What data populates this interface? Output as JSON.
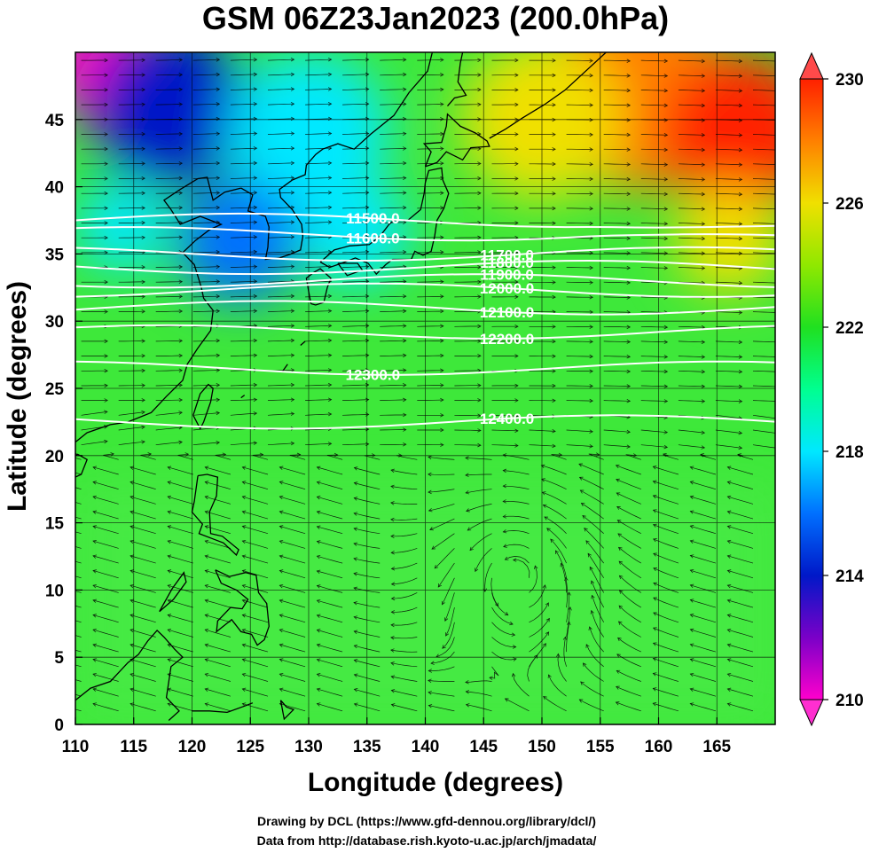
{
  "title": "GSM 06Z23Jan2023 (200.0hPa)",
  "xlabel": "Longitude (degrees)",
  "ylabel": "Latitude  (degrees)",
  "credit_line1": "Drawing by DCL (https://www.gfd-dennou.org/library/dcl/)",
  "credit_line2": "Data from http://database.rish.kyoto-u.ac.jp/arch/jmadata/",
  "chart_data": {
    "type": "heatmap",
    "title": "GSM 06Z23Jan2023 (200.0hPa)",
    "xlabel": "Longitude (degrees)",
    "ylabel": "Latitude  (degrees)",
    "xlim": [
      110,
      170
    ],
    "ylim": [
      0,
      50
    ],
    "x_ticks": [
      "110",
      "115",
      "120",
      "125",
      "130",
      "135",
      "140",
      "145",
      "150",
      "155",
      "160",
      "165"
    ],
    "y_ticks": [
      "0",
      "5",
      "10",
      "15",
      "20",
      "25",
      "30",
      "35",
      "40",
      "45"
    ],
    "colorbar": {
      "range": [
        210,
        230
      ],
      "ticks": [
        "210",
        "214",
        "218",
        "222",
        "226",
        "230"
      ],
      "colors": [
        "#ff00cc",
        "#7a00c8",
        "#0018c8",
        "#0070ff",
        "#00e8ff",
        "#00ff90",
        "#20e020",
        "#90e800",
        "#f0e000",
        "#ff8000",
        "#ff2000"
      ]
    },
    "contours": [
      {
        "label": "11500.0",
        "lat": 37.5
      },
      {
        "label": "11600.0",
        "lat": 36.5
      },
      {
        "label": "11700.0",
        "lat": 35.0
      },
      {
        "label": "11800.0",
        "lat": 34.0
      },
      {
        "label": "11900.0",
        "lat": 33.0
      },
      {
        "label": "12000.0",
        "lat": 32.3
      },
      {
        "label": "12100.0",
        "lat": 31.0
      },
      {
        "label": "12200.0",
        "lat": 29.2
      },
      {
        "label": "12300.0",
        "lat": 26.5
      },
      {
        "label": "12400.0",
        "lat": 22.5
      }
    ],
    "fill_field_blobs": [
      {
        "lon": 112,
        "lat": 49,
        "value": 210,
        "r": 60
      },
      {
        "lon": 118,
        "lat": 46,
        "value": 214,
        "r": 90
      },
      {
        "lon": 130,
        "lat": 44,
        "value": 218,
        "r": 90
      },
      {
        "lon": 124,
        "lat": 36,
        "value": 216,
        "r": 70
      },
      {
        "lon": 134,
        "lat": 36.5,
        "value": 217,
        "r": 60
      },
      {
        "lon": 114,
        "lat": 37,
        "value": 217,
        "r": 50
      },
      {
        "lon": 158,
        "lat": 47,
        "value": 228,
        "r": 110
      },
      {
        "lon": 167,
        "lat": 44,
        "value": 230,
        "r": 90
      },
      {
        "lon": 150,
        "lat": 45,
        "value": 226,
        "r": 90
      },
      {
        "lon": 166,
        "lat": 36,
        "value": 226,
        "r": 60
      }
    ]
  }
}
